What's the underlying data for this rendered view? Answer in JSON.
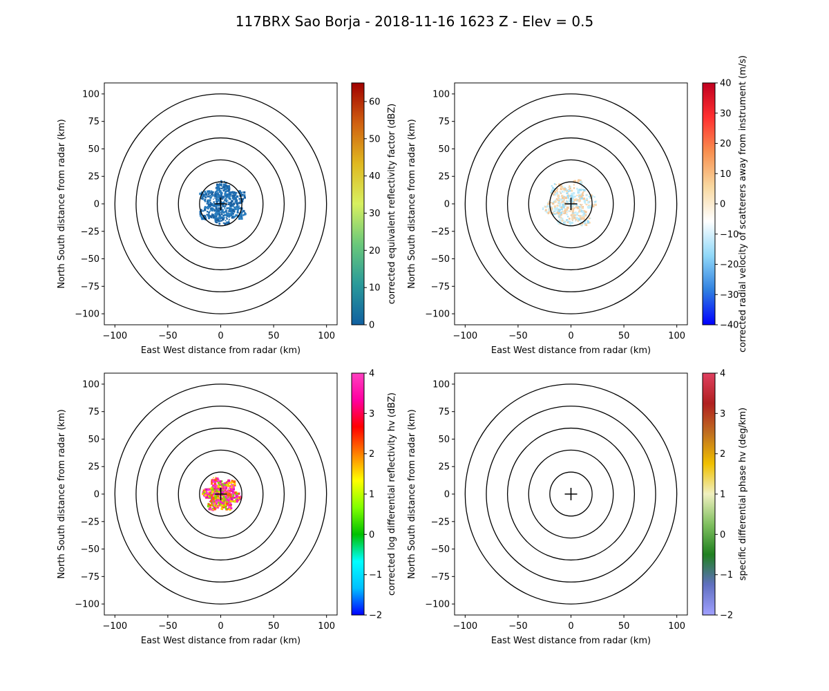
{
  "title": "117BRX Sao Borja - 2018-11-16 1623 Z -  Elev = 0.5",
  "chart_data": [
    {
      "type": "heatmap",
      "xlabel": "East West distance from radar (km)",
      "ylabel": "North South distance from radar (km)",
      "xlim": [
        -110,
        110
      ],
      "ylim": [
        -110,
        110
      ],
      "xticks": [
        -100,
        -50,
        0,
        50,
        100
      ],
      "yticks": [
        -100,
        -75,
        -50,
        -25,
        0,
        25,
        50,
        75,
        100
      ],
      "range_rings_km": [
        20,
        40,
        60,
        80,
        100
      ],
      "colorbar": {
        "label": "corrected equivalent reflectivity factor (dBZ)",
        "range": [
          0,
          65
        ],
        "ticks": [
          0,
          10,
          20,
          30,
          40,
          50,
          60
        ],
        "colors": [
          "#1060a0",
          "#2a9a9a",
          "#6ac87a",
          "#d8f060",
          "#e0b820",
          "#d06010",
          "#a00000"
        ]
      },
      "echo": {
        "extent_km": 22,
        "colors": [
          "#1f6fb5",
          "#2a7fc0",
          "#1a5f9f"
        ],
        "bias_x": 0.2,
        "density": 0.75
      }
    },
    {
      "type": "heatmap",
      "xlabel": "East West distance from radar (km)",
      "ylabel": "North South distance from radar (km)",
      "xlim": [
        -110,
        110
      ],
      "ylim": [
        -110,
        110
      ],
      "xticks": [
        -100,
        -50,
        0,
        50,
        100
      ],
      "yticks": [
        -100,
        -75,
        -50,
        -25,
        0,
        25,
        50,
        75,
        100
      ],
      "range_rings_km": [
        20,
        40,
        60,
        80,
        100
      ],
      "colorbar": {
        "label": "corrected radial velocity of scatterers away from instrument (m/s)",
        "range": [
          -40,
          40
        ],
        "ticks": [
          -40,
          -30,
          -20,
          -10,
          0,
          10,
          20,
          30,
          40
        ],
        "colors": [
          "#0000ff",
          "#3080e0",
          "#90d8f8",
          "#ffffff",
          "#f8d8a0",
          "#f89050",
          "#ff3030",
          "#c00020"
        ]
      },
      "echo": {
        "extent_km": 24,
        "colors": [
          "#f5c89a",
          "#f8d8b0",
          "#9fdcf5",
          "#c2ecfb"
        ],
        "bias_x": -0.3,
        "density": 0.55
      }
    },
    {
      "type": "heatmap",
      "xlabel": "East West distance from radar (km)",
      "ylabel": "North South distance from radar (km)",
      "xlim": [
        -110,
        110
      ],
      "ylim": [
        -110,
        110
      ],
      "xticks": [
        -100,
        -50,
        0,
        50,
        100
      ],
      "yticks": [
        -100,
        -75,
        -50,
        -25,
        0,
        25,
        50,
        75,
        100
      ],
      "range_rings_km": [
        20,
        40,
        60,
        80,
        100
      ],
      "colorbar": {
        "label": "corrected log differential reflectivity hv (dBZ)",
        "range": [
          -2,
          4
        ],
        "ticks": [
          -2,
          -1,
          0,
          1,
          2,
          3,
          4
        ],
        "colors": [
          "#0000ff",
          "#00c0ff",
          "#00ffff",
          "#00c000",
          "#80ff00",
          "#ffff00",
          "#ff8000",
          "#ff0000",
          "#ff00a0",
          "#ff40c0"
        ]
      },
      "echo": {
        "extent_km": 17,
        "colors": [
          "#ff20c0",
          "#ff40d0",
          "#e010b0",
          "#ffd000",
          "#80e000",
          "#ff6000"
        ],
        "bias_x": 0.0,
        "density": 0.85
      }
    },
    {
      "type": "heatmap",
      "xlabel": "East West distance from radar (km)",
      "ylabel": "North South distance from radar (km)",
      "xlim": [
        -110,
        110
      ],
      "ylim": [
        -110,
        110
      ],
      "xticks": [
        -100,
        -50,
        0,
        50,
        100
      ],
      "yticks": [
        -100,
        -75,
        -50,
        -25,
        0,
        25,
        50,
        75,
        100
      ],
      "range_rings_km": [
        20,
        40,
        60,
        80,
        100
      ],
      "colorbar": {
        "label": "specific differential phase hv (deg/km)",
        "range": [
          -2,
          4
        ],
        "ticks": [
          -2,
          -1,
          0,
          1,
          2,
          3,
          4
        ],
        "colors": [
          "#a0a0ff",
          "#6070c0",
          "#208020",
          "#80c060",
          "#f0f0c0",
          "#f0c000",
          "#c07020",
          "#b02020",
          "#e04060"
        ]
      },
      "echo": null
    }
  ]
}
